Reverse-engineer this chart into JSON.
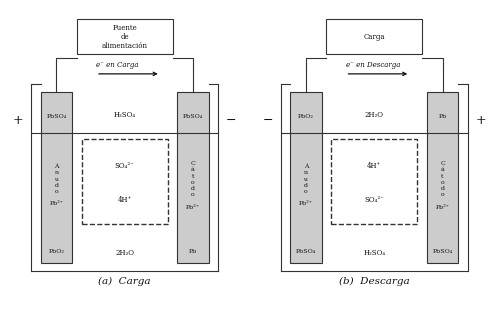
{
  "fig_width": 4.99,
  "fig_height": 3.24,
  "dpi": 100,
  "bg_color": "#ffffff",
  "electrode_color": "#cccccc",
  "line_color": "#333333",
  "text_color": "#111111",
  "left_diagram": {
    "title": "Fuente\nde\nalimentación",
    "electron_label": "e⁻ en Carga",
    "left_sign": "+",
    "right_sign": "−",
    "left_top_label": "PbSO₄",
    "left_mid_label": "Á\nn\nu\nd\no\n\nPb²⁺",
    "left_bot_label": "PbO₂",
    "right_top_label": "PbSO₄",
    "right_mid_label": "C\ná\nt\no\nd\no\n\nPb²⁺",
    "right_bot_label": "Pb",
    "sol_top_label": "H₂SO₄",
    "dash_top_label": "SO₄²⁻",
    "dash_bot_label": "4H⁺",
    "sol_bot_label": "2H₂O",
    "subcaption": "(a)  Carga"
  },
  "right_diagram": {
    "title": "Carga",
    "electron_label": "e⁻ en Descarga",
    "left_sign": "−",
    "right_sign": "+",
    "left_top_label": "PbO₂",
    "left_mid_label": "Á\nn\nu\nd\no\n\nPb²⁺",
    "left_bot_label": "PbSO₄",
    "right_top_label": "Pb",
    "right_mid_label": "C\ná\nt\no\nd\no\n\nPb²⁺",
    "right_bot_label": "PbSO₄",
    "sol_top_label": "2H₂O",
    "dash_top_label": "4H⁺",
    "dash_bot_label": "SO₄²⁻",
    "sol_bot_label": "H₂SO₄",
    "subcaption": "(b)  Descarga"
  }
}
